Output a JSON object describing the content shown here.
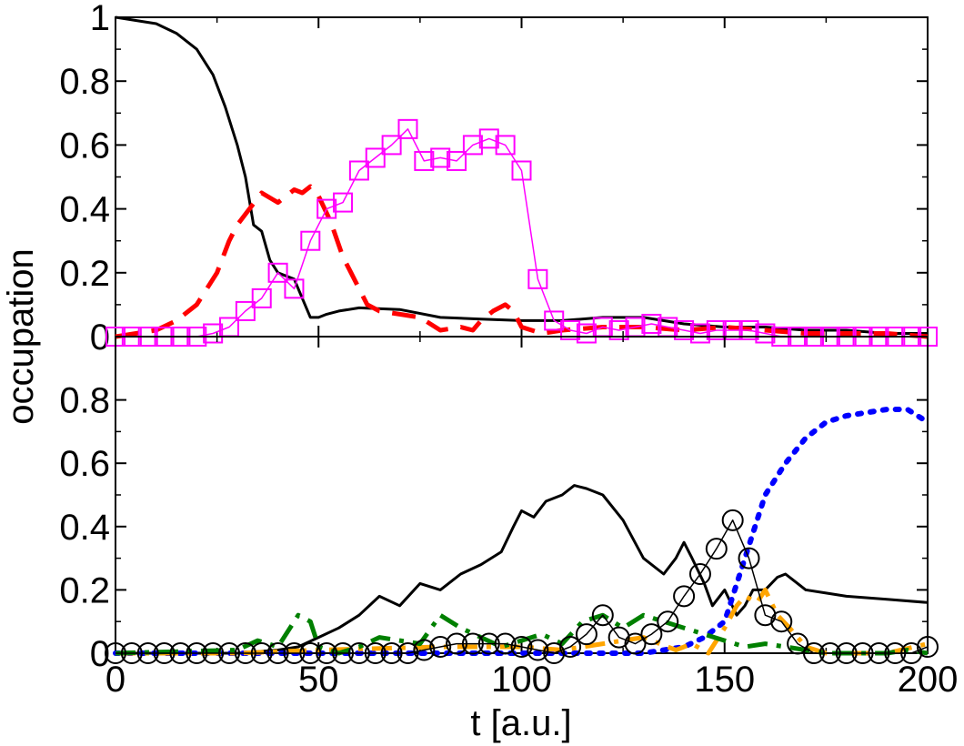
{
  "chart_data": {
    "type": "line",
    "xlabel": "t [a.u.]",
    "ylabel": "occupation",
    "xlim": [
      0,
      200
    ],
    "x_ticks": [
      "0",
      "50",
      "100",
      "150",
      "200"
    ],
    "panels": [
      {
        "id": "top",
        "ylim": [
          0,
          1
        ],
        "y_ticks": [
          "0",
          "0.2",
          "0.4",
          "0.6",
          "0.8",
          "1"
        ],
        "series": [
          {
            "color": "#000000",
            "style": "solid",
            "width": 3,
            "marker": "none",
            "x": [
              0,
              5,
              10,
              15,
              20,
              24,
              27,
              30,
              32,
              34,
              36,
              38,
              40,
              42,
              44,
              46,
              48,
              50,
              52,
              55,
              60,
              70,
              80,
              90,
              100,
              110,
              120,
              130,
              140,
              150,
              160,
              170,
              180,
              190,
              200
            ],
            "y": [
              1.0,
              0.99,
              0.98,
              0.95,
              0.9,
              0.82,
              0.72,
              0.6,
              0.5,
              0.35,
              0.33,
              0.24,
              0.2,
              0.19,
              0.18,
              0.12,
              0.06,
              0.06,
              0.07,
              0.08,
              0.09,
              0.085,
              0.06,
              0.055,
              0.05,
              0.05,
              0.06,
              0.06,
              0.04,
              0.03,
              0.03,
              0.02,
              0.02,
              0.01,
              0.01
            ]
          },
          {
            "color": "#ff0000",
            "style": "dashed",
            "width": 5,
            "marker": "none",
            "x": [
              0,
              10,
              15,
              20,
              25,
              28,
              30,
              33,
              36,
              40,
              44,
              46,
              48,
              50,
              53,
              56,
              58,
              60,
              62,
              65,
              70,
              75,
              80,
              85,
              88,
              90,
              93,
              96,
              98,
              100,
              105,
              110,
              120,
              130,
              140,
              150,
              160,
              170,
              180,
              190,
              200
            ],
            "y": [
              0,
              0.02,
              0.05,
              0.1,
              0.2,
              0.3,
              0.35,
              0.4,
              0.45,
              0.42,
              0.46,
              0.45,
              0.47,
              0.44,
              0.36,
              0.25,
              0.2,
              0.15,
              0.1,
              0.08,
              0.07,
              0.06,
              0.02,
              0.03,
              0.02,
              0.05,
              0.08,
              0.1,
              0.08,
              0.03,
              0.01,
              0.02,
              0.03,
              0.03,
              0.02,
              0.03,
              0.02,
              0.01,
              0.01,
              0.01,
              0.0
            ]
          },
          {
            "color": "#ff00ff",
            "style": "solid",
            "width": 1.5,
            "marker": "square",
            "x": [
              0,
              4,
              8,
              12,
              16,
              20,
              24,
              28,
              32,
              36,
              40,
              44,
              48,
              52,
              56,
              60,
              64,
              68,
              72,
              76,
              80,
              84,
              88,
              92,
              96,
              100,
              104,
              108,
              112,
              116,
              120,
              124,
              128,
              132,
              136,
              140,
              144,
              148,
              152,
              156,
              160,
              164,
              168,
              172,
              176,
              180,
              184,
              188,
              192,
              196,
              200
            ],
            "y": [
              0,
              0,
              0,
              0,
              0,
              0,
              0.01,
              0.03,
              0.08,
              0.12,
              0.2,
              0.15,
              0.3,
              0.4,
              0.42,
              0.52,
              0.56,
              0.6,
              0.65,
              0.55,
              0.56,
              0.55,
              0.6,
              0.62,
              0.6,
              0.52,
              0.18,
              0.05,
              0.02,
              0.01,
              0.03,
              0.02,
              0.03,
              0.04,
              0.03,
              0.02,
              0.01,
              0.02,
              0.02,
              0.02,
              0.01,
              0.0,
              0.0,
              0.0,
              0.0,
              0.0,
              0.0,
              0.0,
              0.0,
              0.0,
              0.0
            ]
          }
        ]
      },
      {
        "id": "bottom",
        "ylim": [
          0,
          1
        ],
        "y_ticks": [
          "0",
          "0.2",
          "0.4",
          "0.6",
          "0.8"
        ],
        "series": [
          {
            "color": "#000000",
            "style": "solid",
            "width": 3,
            "marker": "none",
            "x": [
              0,
              20,
              30,
              40,
              45,
              50,
              55,
              60,
              65,
              70,
              75,
              80,
              85,
              90,
              95,
              98,
              100,
              103,
              106,
              110,
              113,
              116,
              120,
              125,
              130,
              135,
              138,
              140,
              142,
              145,
              147,
              150,
              153,
              155,
              157,
              160,
              163,
              165,
              168,
              170,
              175,
              180,
              190,
              200
            ],
            "y": [
              0,
              0,
              0,
              0.01,
              0.02,
              0.05,
              0.08,
              0.12,
              0.18,
              0.15,
              0.22,
              0.2,
              0.25,
              0.28,
              0.32,
              0.4,
              0.45,
              0.43,
              0.48,
              0.5,
              0.53,
              0.52,
              0.5,
              0.42,
              0.3,
              0.25,
              0.3,
              0.35,
              0.3,
              0.22,
              0.15,
              0.2,
              0.12,
              0.15,
              0.2,
              0.2,
              0.24,
              0.25,
              0.22,
              0.2,
              0.19,
              0.18,
              0.17,
              0.16
            ]
          },
          {
            "color": "#0000ff",
            "style": "dotted",
            "width": 6,
            "marker": "none",
            "x": [
              0,
              100,
              120,
              130,
              140,
              145,
              150,
              155,
              160,
              165,
              170,
              175,
              180,
              185,
              190,
              195,
              200
            ],
            "y": [
              0,
              0,
              0,
              0,
              0.02,
              0.05,
              0.1,
              0.3,
              0.5,
              0.6,
              0.68,
              0.73,
              0.75,
              0.76,
              0.77,
              0.77,
              0.73
            ]
          },
          {
            "color": "#ffa500",
            "style": "dashdot",
            "width": 5,
            "marker": "none",
            "x": [
              0,
              30,
              50,
              80,
              100,
              110,
              120,
              130,
              138,
              142,
              146,
              150,
              153,
              155,
              158,
              160,
              163,
              166,
              170,
              175,
              180,
              190,
              200
            ],
            "y": [
              0,
              0,
              0.01,
              0.02,
              0.02,
              0.01,
              0.03,
              0.05,
              0.01,
              0.03,
              0.0,
              0.08,
              0.15,
              0.18,
              0.16,
              0.2,
              0.12,
              0.08,
              0.02,
              0.0,
              0.0,
              0.0,
              0.03
            ]
          },
          {
            "color": "#008000",
            "style": "dashdot",
            "width": 5,
            "marker": "none",
            "x": [
              0,
              30,
              35,
              40,
              45,
              48,
              50,
              55,
              60,
              65,
              75,
              80,
              85,
              90,
              95,
              100,
              105,
              110,
              115,
              120,
              125,
              130,
              135,
              140,
              145,
              150,
              155,
              160,
              165,
              170,
              175,
              180,
              185,
              190,
              195,
              200
            ],
            "y": [
              0,
              0.01,
              0.04,
              0.02,
              0.12,
              0.1,
              0.02,
              0.0,
              0.02,
              0.05,
              0.03,
              0.12,
              0.08,
              0.05,
              0.02,
              0.04,
              0.06,
              0.03,
              0.1,
              0.12,
              0.08,
              0.12,
              0.1,
              0.08,
              0.06,
              0.04,
              0.02,
              0.03,
              0.02,
              0.01,
              0.0,
              0.0,
              0.0,
              0.0,
              0.01,
              0.0
            ]
          },
          {
            "color": "#000000",
            "style": "solid",
            "width": 1.5,
            "marker": "circle",
            "x": [
              0,
              4,
              8,
              12,
              16,
              20,
              24,
              28,
              32,
              36,
              40,
              44,
              48,
              52,
              56,
              60,
              64,
              68,
              72,
              76,
              80,
              84,
              88,
              92,
              96,
              100,
              104,
              108,
              112,
              116,
              120,
              124,
              128,
              132,
              136,
              140,
              144,
              148,
              152,
              156,
              160,
              164,
              168,
              172,
              176,
              180,
              184,
              188,
              192,
              196,
              200
            ],
            "y": [
              0,
              0,
              0,
              0,
              0,
              0,
              0,
              0,
              0,
              0,
              0,
              0,
              0,
              0,
              0,
              0,
              0,
              0,
              0,
              0.01,
              0.02,
              0.03,
              0.03,
              0.03,
              0.03,
              0.02,
              0.01,
              0.0,
              0.02,
              0.06,
              0.12,
              0.05,
              0.03,
              0.06,
              0.1,
              0.18,
              0.25,
              0.33,
              0.42,
              0.3,
              0.12,
              0.1,
              0.03,
              0.0,
              0.0,
              0.0,
              0.0,
              0.0,
              0.0,
              0.0,
              0.02
            ]
          }
        ]
      }
    ]
  }
}
